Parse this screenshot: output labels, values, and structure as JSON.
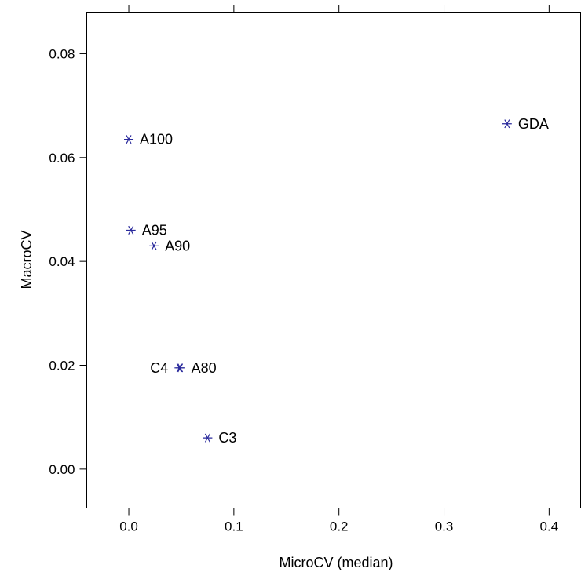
{
  "chart_data": {
    "type": "scatter",
    "title": "",
    "xlabel": "MicroCV  (median)",
    "ylabel": "MacroCV",
    "xlim": [
      -0.04,
      0.43
    ],
    "ylim": [
      -0.0075,
      0.088
    ],
    "xticks": [
      0.0,
      0.1,
      0.2,
      0.3,
      0.4
    ],
    "xtick_labels": [
      "0.0",
      "0.1",
      "0.2",
      "0.3",
      "0.4"
    ],
    "yticks": [
      0.0,
      0.02,
      0.04,
      0.06,
      0.08
    ],
    "ytick_labels": [
      "0.00",
      "0.02",
      "0.04",
      "0.06",
      "0.08"
    ],
    "grid": false,
    "marker": "asterisk",
    "marker_color": "#2a2a9c",
    "points": [
      {
        "label": "A100",
        "x": 0.0,
        "y": 0.0635,
        "label_side": "right"
      },
      {
        "label": "A95",
        "x": 0.002,
        "y": 0.046,
        "label_side": "right"
      },
      {
        "label": "A90",
        "x": 0.024,
        "y": 0.043,
        "label_side": "right"
      },
      {
        "label": "A80",
        "x": 0.049,
        "y": 0.0195,
        "label_side": "right"
      },
      {
        "label": "C4",
        "x": 0.048,
        "y": 0.0195,
        "label_side": "left"
      },
      {
        "label": "C3",
        "x": 0.075,
        "y": 0.006,
        "label_side": "right"
      },
      {
        "label": "GDA",
        "x": 0.36,
        "y": 0.0665,
        "label_side": "right"
      }
    ]
  }
}
